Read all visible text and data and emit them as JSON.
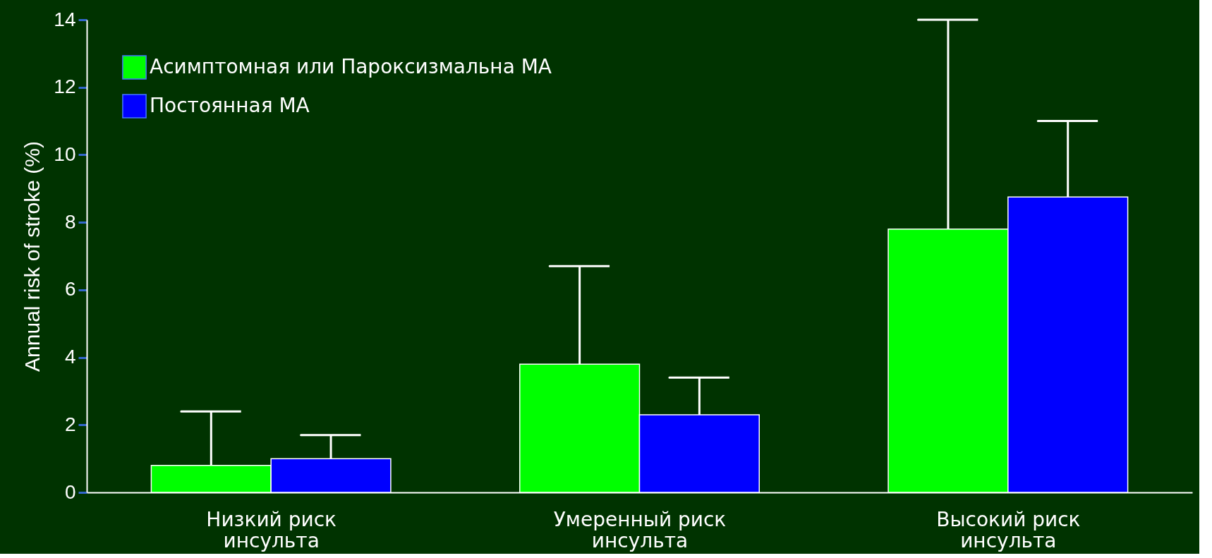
{
  "chart_data": {
    "type": "bar",
    "ylabel": "Annual risk of stroke (%)",
    "categories": [
      "Низкий риск инсульта",
      "Умеренный риск инсульта",
      "Высокий риск инсульта"
    ],
    "series": [
      {
        "name": "Асимптомная или Пароксизмальна МА",
        "color": "#00ff00",
        "values": [
          0.8,
          3.8,
          7.8
        ],
        "errors": [
          [
            0.8,
            2.4
          ],
          [
            3.8,
            6.7
          ],
          [
            7.8,
            14
          ]
        ]
      },
      {
        "name": "Постоянная МА",
        "color": "#0000ff",
        "values": [
          1.0,
          2.3,
          8.75
        ],
        "errors": [
          [
            1.0,
            1.7
          ],
          [
            2.3,
            3.4
          ],
          [
            8.75,
            11
          ]
        ]
      }
    ],
    "ylim": [
      0,
      14
    ],
    "yticks": [
      0,
      2,
      4,
      6,
      8,
      10,
      12,
      14
    ],
    "grid": false,
    "legend": "top left"
  }
}
